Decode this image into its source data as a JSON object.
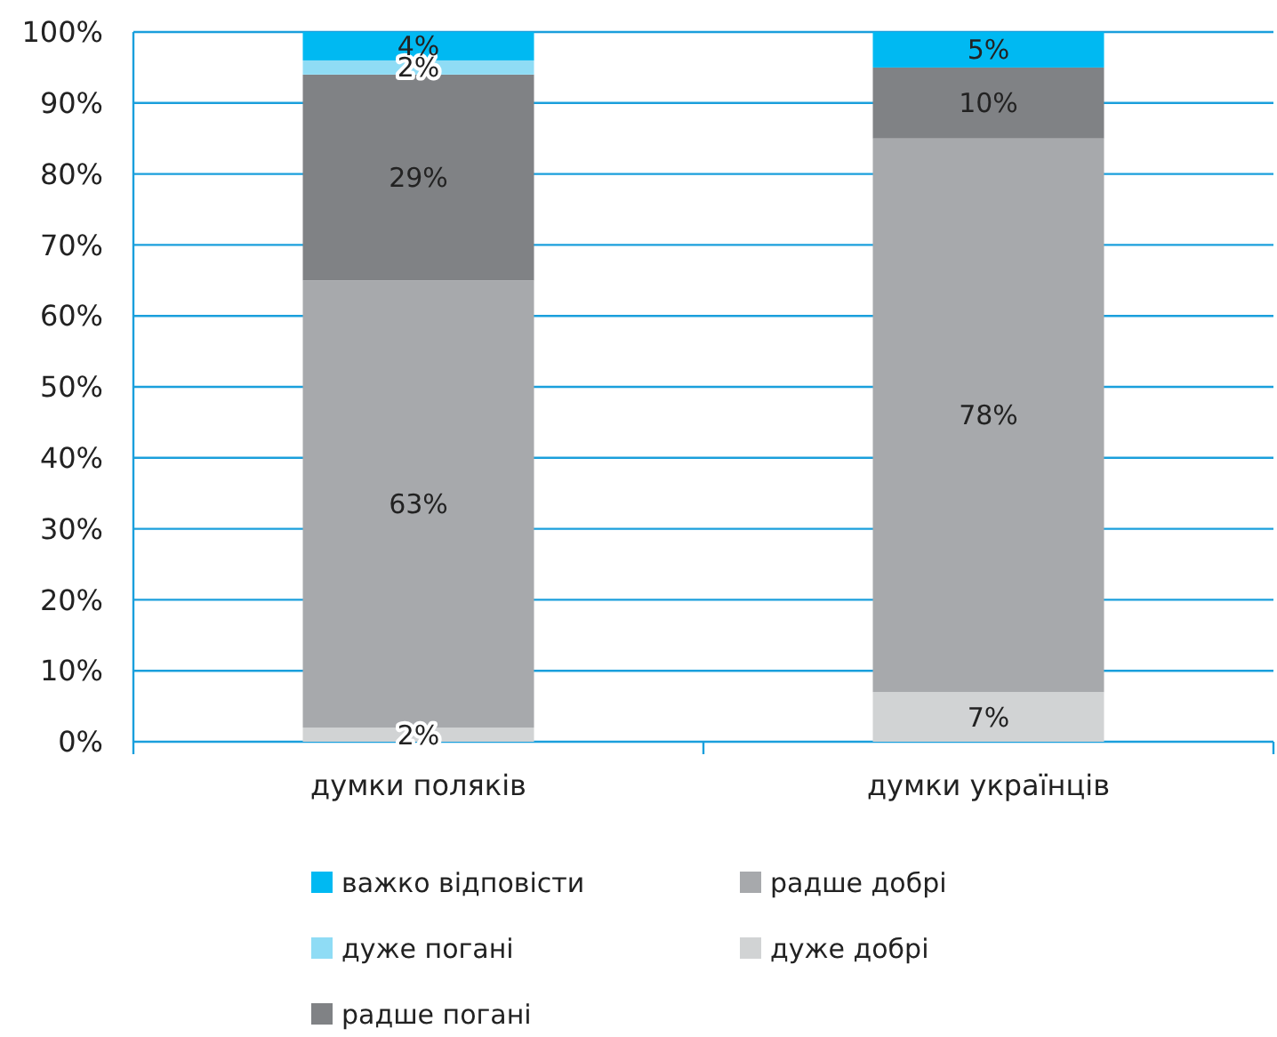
{
  "chart_data": {
    "type": "bar",
    "stacked": true,
    "categories": [
      "думки поляків",
      "думки українців"
    ],
    "ylim": [
      0,
      100
    ],
    "yticks": [
      {
        "value": 0,
        "label": "0%"
      },
      {
        "value": 10,
        "label": "10%"
      },
      {
        "value": 20,
        "label": "20%"
      },
      {
        "value": 30,
        "label": "30%"
      },
      {
        "value": 40,
        "label": "40%"
      },
      {
        "value": 50,
        "label": "50%"
      },
      {
        "value": 60,
        "label": "60%"
      },
      {
        "value": 70,
        "label": "70%"
      },
      {
        "value": 80,
        "label": "80%"
      },
      {
        "value": 90,
        "label": "90%"
      },
      {
        "value": 100,
        "label": "100%"
      }
    ],
    "grid": "y",
    "legend": "bottom",
    "series": [
      {
        "name": "дуже добрі",
        "color": "#d1d3d4",
        "values": [
          2,
          7
        ],
        "value_labels": [
          "2%",
          "7%"
        ]
      },
      {
        "name": "радше добрі",
        "color": "#a7a9ac",
        "values": [
          63,
          78
        ],
        "value_labels": [
          "63%",
          "78%"
        ]
      },
      {
        "name": "радше погані",
        "color": "#808285",
        "values": [
          29,
          10
        ],
        "value_labels": [
          "29%",
          "10%"
        ]
      },
      {
        "name": "дуже погані",
        "color": "#8fdcf5",
        "values": [
          2,
          null
        ],
        "value_labels": [
          "2%",
          null
        ]
      },
      {
        "name": "важко відповісти",
        "color": "#00b9f2",
        "values": [
          4,
          5
        ],
        "value_labels": [
          "4%",
          "5%"
        ]
      }
    ]
  }
}
